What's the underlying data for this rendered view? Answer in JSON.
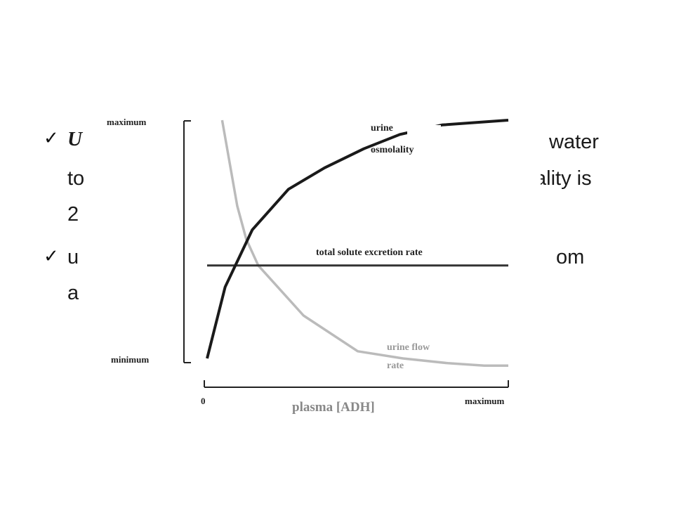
{
  "slide": {
    "bullets": [
      {
        "check": "✓",
        "lines": [
          "U",
          "to",
          "2"
        ],
        "tails": [
          "water",
          "ality is"
        ]
      },
      {
        "check": "✓",
        "lines": [
          "u",
          "a"
        ],
        "tails": [
          "om"
        ]
      }
    ]
  },
  "chart_data": {
    "type": "line",
    "xlabel": "plasma [ADH]",
    "x_ticks": [
      "0",
      "maximum"
    ],
    "y_ticks": [
      "maximum",
      "minimum"
    ],
    "xlim": [
      0,
      1
    ],
    "ylim": [
      0,
      1
    ],
    "grid": false,
    "series": [
      {
        "name": "urine osmolality",
        "label_lines": [
          "urine",
          "osmolality"
        ],
        "color": "#1a1a1a",
        "x": [
          0.0,
          0.06,
          0.15,
          0.27,
          0.39,
          0.52,
          0.64,
          0.78,
          1.0
        ],
        "y": [
          0.0,
          0.3,
          0.54,
          0.71,
          0.8,
          0.88,
          0.94,
          0.98,
          1.0
        ]
      },
      {
        "name": "total solute excretion rate",
        "label_lines": [
          "total solute excretion rate"
        ],
        "color": "#333333",
        "x": [
          0.0,
          1.0
        ],
        "y": [
          0.39,
          0.39
        ]
      },
      {
        "name": "urine flow rate",
        "label_lines": [
          "urine flow",
          "rate"
        ],
        "color": "#bbbbbb",
        "x": [
          0.05,
          0.1,
          0.13,
          0.17,
          0.32,
          0.5,
          0.65,
          0.8,
          0.92,
          1.0
        ],
        "y": [
          1.0,
          0.64,
          0.5,
          0.39,
          0.18,
          0.03,
          0.0,
          -0.02,
          -0.03,
          -0.03
        ]
      }
    ]
  }
}
